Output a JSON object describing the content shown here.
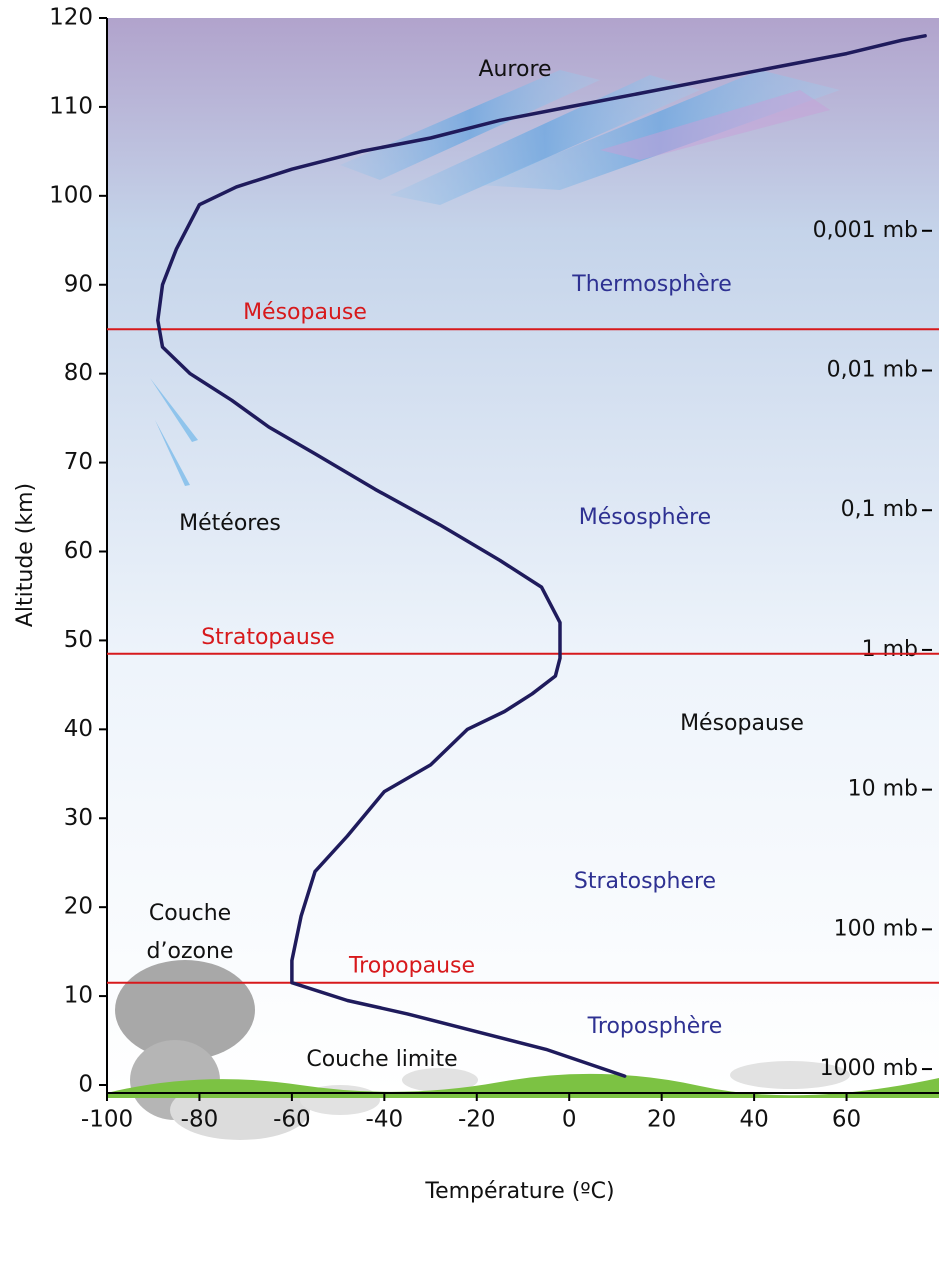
{
  "chart_data": {
    "type": "line",
    "x_label": "Température (ºC)",
    "y_label": "Altitude (km)",
    "x": [
      12,
      -5,
      -20,
      -35,
      -48,
      -60,
      -60,
      -58,
      -55,
      -48,
      -40,
      -30,
      -22,
      -14,
      -8,
      -3,
      -2,
      -2,
      -6,
      -15,
      -28,
      -42,
      -55,
      -65,
      -73,
      -82,
      -88,
      -89,
      -88,
      -85,
      -80,
      -72,
      -60,
      -45,
      -30,
      -15,
      0,
      15,
      30,
      45,
      60,
      72,
      77
    ],
    "values": [
      1,
      4,
      6,
      8,
      9.5,
      11.5,
      14,
      19,
      24,
      28,
      33,
      36,
      40,
      42,
      44,
      46,
      48,
      52,
      56,
      59,
      63,
      67,
      71,
      74,
      77,
      80,
      83,
      86,
      90,
      94,
      99,
      101,
      103,
      105,
      106.5,
      108.5,
      110,
      111.5,
      113,
      114.5,
      116,
      117.5,
      118
    ],
    "color": "#1f1b5c",
    "xlim": [
      -100,
      80
    ],
    "ylim": [
      0,
      120
    ],
    "xticks": [
      -100,
      -80,
      -60,
      -40,
      -20,
      0,
      20,
      40,
      60
    ],
    "yticks": [
      0,
      10,
      20,
      30,
      40,
      50,
      60,
      70,
      80,
      90,
      100,
      110,
      120
    ],
    "y2log": true,
    "y2lim": [
      1300,
      3e-05
    ],
    "y2ticks": [
      {
        "value": 0.001,
        "label": "0,001 mb"
      },
      {
        "value": 0.01,
        "label": "0,01 mb"
      },
      {
        "value": 0.1,
        "label": "0,1 mb"
      },
      {
        "value": 1,
        "label": "1 mb"
      },
      {
        "value": 10,
        "label": "10 mb"
      },
      {
        "value": 100,
        "label": "100 mb"
      },
      {
        "value": 1000,
        "label": "1000 mb"
      }
    ],
    "boundaries": [
      {
        "name": "Mésopause",
        "value": 85,
        "color": "#d7191c"
      },
      {
        "name": "Stratopause",
        "value": 48.5,
        "color": "#d7191c"
      },
      {
        "name": "Tropopause",
        "value": 11.5,
        "color": "#d7191c"
      }
    ],
    "annotations": [
      "Aurore",
      "Thermosphère",
      "Mésosphère",
      "Stratosphere",
      "Troposphère",
      "Météores",
      "Mésopause",
      "Couche",
      "d’ozone",
      "Couche limite"
    ]
  }
}
